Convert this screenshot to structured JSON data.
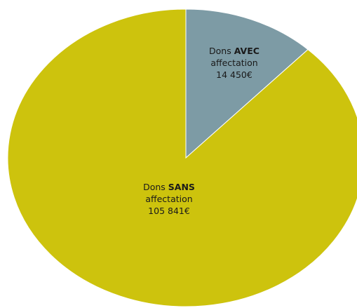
{
  "chart_data": {
    "type": "pie",
    "title": "",
    "slices": [
      {
        "label_prefix": "Dons",
        "label_bold": "AVEC",
        "label_suffix": "affectation",
        "value": 14450,
        "value_label": "14 450€",
        "color": "#7d9ba5"
      },
      {
        "label_prefix": "Dons",
        "label_bold": "SANS",
        "label_suffix": "affectation",
        "value": 105841,
        "value_label": "105 841€",
        "color": "#cdc30d"
      }
    ],
    "start_angle_deg": 0,
    "direction": "clockwise",
    "legend": "none"
  }
}
